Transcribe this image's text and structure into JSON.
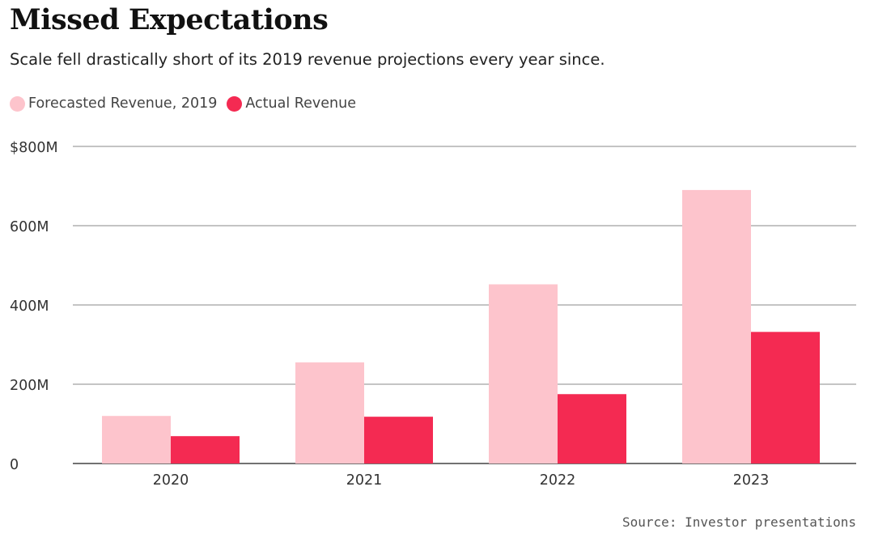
{
  "chart_data": {
    "type": "bar",
    "title": "Missed Expectations",
    "subtitle": "Scale fell drastically short of its 2019 revenue projections every year since.",
    "categories": [
      "2020",
      "2021",
      "2022",
      "2023"
    ],
    "series": [
      {
        "name": "Forecasted Revenue, 2019",
        "values": [
          120,
          255,
          452,
          690
        ],
        "color": "#fdc4cc"
      },
      {
        "name": "Actual Revenue",
        "values": [
          69,
          118,
          175,
          332
        ],
        "color": "#f42a52"
      }
    ],
    "unit": "millions USD",
    "ylim": [
      0,
      800
    ],
    "yticks": [
      0,
      200,
      400,
      600,
      800
    ],
    "ytick_labels": [
      "0",
      "200M",
      "400M",
      "600M",
      "$800M"
    ],
    "grid": true,
    "legend_position": "top-left",
    "source": "Source: Investor presentations"
  }
}
